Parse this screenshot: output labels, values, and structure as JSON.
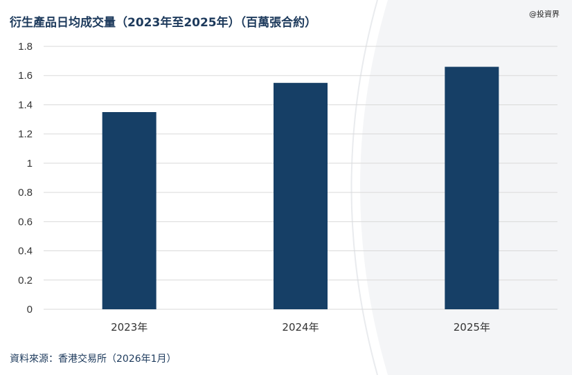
{
  "header": {
    "title": "衍生產品日均成交量（2023年至2025年）（百萬張合約）",
    "watermark": "@投資界"
  },
  "footer": {
    "source": "資料來源：香港交易所（2026年1月）"
  },
  "colors": {
    "bar": "#163f66",
    "grid": "#d9d9d9",
    "text": "#1d3a5c"
  },
  "chart_data": {
    "type": "bar",
    "title": "衍生產品日均成交量（2023年至2025年）（百萬張合約）",
    "categories": [
      "2023年",
      "2024年",
      "2025年"
    ],
    "values": [
      1.35,
      1.55,
      1.66
    ],
    "ylim": [
      0,
      1.8
    ],
    "yticks": [
      0,
      0.2,
      0.4,
      0.6,
      0.8,
      1,
      1.2,
      1.4,
      1.6,
      1.8
    ],
    "ytick_labels": [
      "0",
      "0.2",
      "0.4",
      "0.6",
      "0.8",
      "1",
      "1.2",
      "1.4",
      "1.6",
      "1.8"
    ],
    "grid": true,
    "legend": "none"
  }
}
